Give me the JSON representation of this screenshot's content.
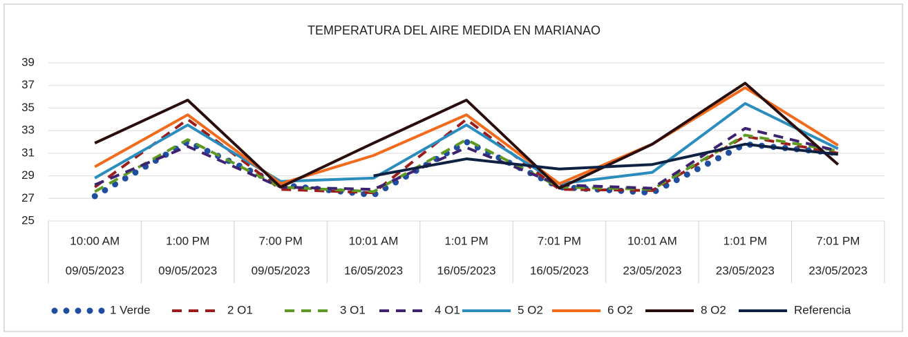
{
  "chart_data": {
    "type": "line",
    "title": "TEMPERATURA  DEL AIRE MEDIDA EN MARIANAO",
    "categories": [
      [
        "10:00 AM",
        "09/05/2023"
      ],
      [
        "1:00 PM",
        "09/05/2023"
      ],
      [
        "7:00 PM",
        "09/05/2023"
      ],
      [
        "10:01 AM",
        "16/05/2023"
      ],
      [
        "1:01 PM",
        "16/05/2023"
      ],
      [
        "7:01 PM",
        "16/05/2023"
      ],
      [
        "10:01 AM",
        "23/05/2023"
      ],
      [
        "1:01 PM",
        "23/05/2023"
      ],
      [
        "7:01 PM",
        "23/05/2023"
      ]
    ],
    "ylim": [
      25,
      39
    ],
    "yticks": [
      25,
      27,
      29,
      31,
      33,
      35,
      37,
      39
    ],
    "grid": true,
    "legend": "bottom",
    "series": [
      {
        "name": "1 Verde",
        "color": "#1f4ea0",
        "style": "dotted",
        "values": [
          27.2,
          32.0,
          28.2,
          27.3,
          32.0,
          28.0,
          27.5,
          31.8,
          31.0
        ]
      },
      {
        "name": "2 O1",
        "color": "#9c1c1c",
        "style": "dashed",
        "values": [
          28.0,
          34.0,
          27.8,
          27.5,
          34.0,
          27.8,
          27.7,
          32.5,
          31.0
        ]
      },
      {
        "name": "3 O1",
        "color": "#5e9a22",
        "style": "dashed",
        "values": [
          27.6,
          32.2,
          28.0,
          27.6,
          32.2,
          28.0,
          27.8,
          32.6,
          31.2
        ]
      },
      {
        "name": "4 O1",
        "color": "#3d2270",
        "style": "dashed",
        "values": [
          28.2,
          31.6,
          28.0,
          27.8,
          31.5,
          28.2,
          27.9,
          33.2,
          31.2
        ]
      },
      {
        "name": "5 O2",
        "color": "#2b8cbe",
        "style": "solid",
        "values": [
          28.8,
          33.5,
          28.5,
          28.8,
          33.5,
          28.3,
          29.3,
          35.4,
          31.4
        ]
      },
      {
        "name": "6 O2",
        "color": "#f26b1d",
        "style": "solid",
        "values": [
          29.8,
          34.4,
          28.3,
          30.8,
          34.4,
          28.3,
          31.8,
          36.8,
          31.7
        ]
      },
      {
        "name": "8 O2",
        "color": "#2a0d0d",
        "style": "solid",
        "values": [
          31.9,
          35.7,
          28.0,
          31.9,
          35.7,
          27.9,
          31.8,
          37.2,
          30.0
        ]
      },
      {
        "name": "Referencia",
        "color": "#0f2142",
        "style": "solid",
        "values": [
          null,
          null,
          null,
          29.0,
          30.5,
          29.6,
          30.0,
          31.8,
          30.9
        ]
      }
    ]
  }
}
